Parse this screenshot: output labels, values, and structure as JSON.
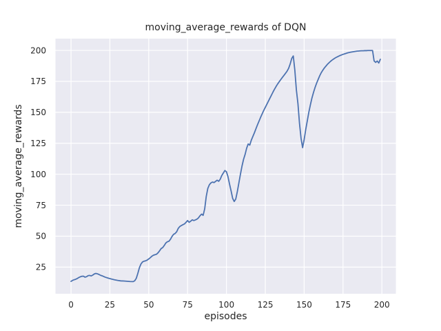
{
  "figure": {
    "title": "moving_average_rewards of DQN",
    "xlabel": "episodes",
    "ylabel": "moving_average_rewards"
  },
  "colors": {
    "figure_bg": "#ffffff",
    "plot_bg": "#eaeaf2",
    "grid": "#ffffff",
    "line": "#4c72b0",
    "text": "#262626"
  },
  "chart_data": {
    "type": "line",
    "title": "moving_average_rewards of DQN",
    "xlabel": "episodes",
    "ylabel": "moving_average_rewards",
    "grid": true,
    "legend": false,
    "xticks": [
      0,
      25,
      50,
      75,
      100,
      125,
      150,
      175,
      200
    ],
    "yticks": [
      25,
      50,
      75,
      100,
      125,
      150,
      175,
      200
    ],
    "xlim": [
      -10,
      209
    ],
    "ylim": [
      3.5,
      209.5
    ],
    "series": [
      {
        "name": "moving_average_rewards",
        "color": "#4c72b0",
        "points": [
          [
            0,
            13.5
          ],
          [
            1,
            14.3
          ],
          [
            2,
            14.8
          ],
          [
            3,
            15.2
          ],
          [
            4,
            15.8
          ],
          [
            5,
            16.6
          ],
          [
            6,
            17.2
          ],
          [
            7,
            17.6
          ],
          [
            8,
            17.7
          ],
          [
            9,
            16.9
          ],
          [
            10,
            17.3
          ],
          [
            11,
            18.1
          ],
          [
            12,
            18.3
          ],
          [
            13,
            17.9
          ],
          [
            14,
            18.6
          ],
          [
            15,
            19.5
          ],
          [
            16,
            19.9
          ],
          [
            17,
            19.6
          ],
          [
            18,
            19.1
          ],
          [
            19,
            18.4
          ],
          [
            20,
            18.0
          ],
          [
            22,
            16.9
          ],
          [
            24,
            16.1
          ],
          [
            26,
            15.4
          ],
          [
            28,
            14.8
          ],
          [
            30,
            14.3
          ],
          [
            32,
            13.9
          ],
          [
            34,
            13.8
          ],
          [
            36,
            13.6
          ],
          [
            38,
            13.4
          ],
          [
            40,
            13.3
          ],
          [
            41,
            14.0
          ],
          [
            42,
            16.0
          ],
          [
            43,
            20.0
          ],
          [
            44,
            24.5
          ],
          [
            45,
            27.5
          ],
          [
            46,
            29.2
          ],
          [
            47,
            29.8
          ],
          [
            48,
            30.1
          ],
          [
            49,
            30.7
          ],
          [
            50,
            31.6
          ],
          [
            51,
            32.6
          ],
          [
            52,
            33.8
          ],
          [
            53,
            34.6
          ],
          [
            54,
            35.0
          ],
          [
            55,
            35.4
          ],
          [
            56,
            36.6
          ],
          [
            57,
            38.2
          ],
          [
            58,
            40.0
          ],
          [
            59,
            40.8
          ],
          [
            60,
            42.5
          ],
          [
            61,
            44.5
          ],
          [
            62,
            45.5
          ],
          [
            63,
            45.9
          ],
          [
            64,
            47.5
          ],
          [
            65,
            49.8
          ],
          [
            66,
            51.5
          ],
          [
            67,
            52.2
          ],
          [
            68,
            53.6
          ],
          [
            69,
            56.3
          ],
          [
            70,
            57.8
          ],
          [
            71,
            58.6
          ],
          [
            72,
            59.3
          ],
          [
            73,
            59.9
          ],
          [
            74,
            61.2
          ],
          [
            75,
            62.6
          ],
          [
            76,
            61.2
          ],
          [
            77,
            62.1
          ],
          [
            78,
            63.2
          ],
          [
            79,
            62.6
          ],
          [
            80,
            63.1
          ],
          [
            81,
            63.7
          ],
          [
            82,
            64.8
          ],
          [
            83,
            66.5
          ],
          [
            84,
            67.8
          ],
          [
            85,
            66.8
          ],
          [
            86,
            72.0
          ],
          [
            87,
            82.0
          ],
          [
            88,
            88.5
          ],
          [
            89,
            91.5
          ],
          [
            90,
            93.0
          ],
          [
            91,
            93.7
          ],
          [
            92,
            93.3
          ],
          [
            93,
            94.2
          ],
          [
            94,
            95.2
          ],
          [
            95,
            94.3
          ],
          [
            96,
            96.0
          ],
          [
            97,
            99.0
          ],
          [
            98,
            101.0
          ],
          [
            99,
            103.0
          ],
          [
            100,
            102.0
          ],
          [
            101,
            98.0
          ],
          [
            102,
            92.0
          ],
          [
            103,
            86.5
          ],
          [
            104,
            80.5
          ],
          [
            105,
            78.0
          ],
          [
            106,
            80.0
          ],
          [
            107,
            86.0
          ],
          [
            108,
            93.0
          ],
          [
            109,
            100.0
          ],
          [
            110,
            106.5
          ],
          [
            111,
            112.0
          ],
          [
            112,
            116.0
          ],
          [
            113,
            121.0
          ],
          [
            114,
            124.5
          ],
          [
            115,
            123.5
          ],
          [
            116,
            127.5
          ],
          [
            117,
            130.5
          ],
          [
            118,
            133.5
          ],
          [
            119,
            136.8
          ],
          [
            120,
            140.0
          ],
          [
            121,
            143.0
          ],
          [
            122,
            146.0
          ],
          [
            123,
            148.8
          ],
          [
            124,
            151.5
          ],
          [
            125,
            154.0
          ],
          [
            126,
            156.5
          ],
          [
            127,
            159.0
          ],
          [
            128,
            161.5
          ],
          [
            129,
            164.0
          ],
          [
            130,
            166.5
          ],
          [
            131,
            168.8
          ],
          [
            132,
            171.0
          ],
          [
            133,
            173.0
          ],
          [
            134,
            174.8
          ],
          [
            135,
            176.5
          ],
          [
            136,
            178.2
          ],
          [
            137,
            179.8
          ],
          [
            138,
            181.5
          ],
          [
            139,
            183.2
          ],
          [
            140,
            185.5
          ],
          [
            141,
            189.0
          ],
          [
            142,
            193.5
          ],
          [
            143,
            195.5
          ],
          [
            144,
            184.0
          ],
          [
            145,
            168.0
          ],
          [
            146,
            157.0
          ],
          [
            147,
            141.0
          ],
          [
            148,
            129.0
          ],
          [
            149,
            121.5
          ],
          [
            150,
            128.0
          ],
          [
            151,
            136.0
          ],
          [
            152,
            143.0
          ],
          [
            153,
            150.0
          ],
          [
            154,
            156.0
          ],
          [
            155,
            161.5
          ],
          [
            156,
            166.0
          ],
          [
            157,
            170.0
          ],
          [
            158,
            173.5
          ],
          [
            159,
            176.5
          ],
          [
            160,
            179.5
          ],
          [
            161,
            182.0
          ],
          [
            162,
            184.0
          ],
          [
            163,
            185.8
          ],
          [
            164,
            187.3
          ],
          [
            165,
            188.8
          ],
          [
            166,
            190.0
          ],
          [
            167,
            191.2
          ],
          [
            168,
            192.2
          ],
          [
            169,
            193.1
          ],
          [
            170,
            193.9
          ],
          [
            171,
            194.6
          ],
          [
            172,
            195.2
          ],
          [
            173,
            195.8
          ],
          [
            174,
            196.3
          ],
          [
            175,
            196.8
          ],
          [
            176,
            197.2
          ],
          [
            177,
            197.6
          ],
          [
            178,
            198.0
          ],
          [
            179,
            198.3
          ],
          [
            180,
            198.6
          ],
          [
            181,
            198.8
          ],
          [
            182,
            199.0
          ],
          [
            183,
            199.2
          ],
          [
            184,
            199.4
          ],
          [
            185,
            199.5
          ],
          [
            186,
            199.6
          ],
          [
            187,
            199.7
          ],
          [
            188,
            199.7
          ],
          [
            189,
            199.8
          ],
          [
            190,
            199.8
          ],
          [
            191,
            199.9
          ],
          [
            192,
            199.9
          ],
          [
            193,
            199.9
          ],
          [
            194,
            199.9
          ],
          [
            195,
            191.5
          ],
          [
            196,
            190.3
          ],
          [
            197,
            191.4
          ],
          [
            198,
            189.8
          ],
          [
            199,
            192.8
          ]
        ]
      }
    ]
  }
}
